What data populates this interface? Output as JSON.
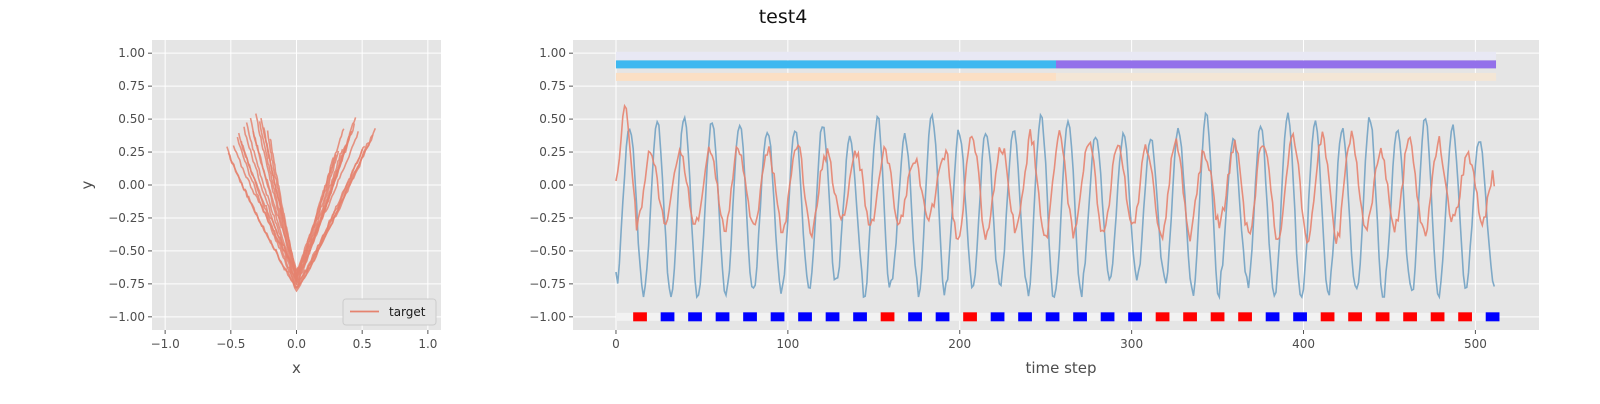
{
  "figure": {
    "title": "test4"
  },
  "chart_data": [
    {
      "type": "line",
      "xlabel": "x",
      "ylabel": "y",
      "xlim": [
        -1.1,
        1.1
      ],
      "ylim": [
        -1.1,
        1.1
      ],
      "xticks": [
        -1.0,
        -0.5,
        0.0,
        0.5,
        1.0
      ],
      "yticks": [
        -1.0,
        -0.75,
        -0.5,
        -0.25,
        0.0,
        0.25,
        0.5,
        0.75,
        1.0
      ],
      "xtick_labels": [
        "−1.0",
        "−0.5",
        "0.0",
        "0.5",
        "1.0"
      ],
      "ytick_labels": [
        "−1.00",
        "−0.75",
        "−0.50",
        "−0.25",
        "0.00",
        "0.25",
        "0.50",
        "0.75",
        "1.00"
      ],
      "grid": true,
      "legend": {
        "placement": "bottom-right",
        "entries": [
          {
            "label": "target",
            "color": "#e5836f"
          }
        ]
      },
      "series_color": "#e5836f",
      "series": [
        {
          "name": "target",
          "vertex": [
            0.0,
            -0.8
          ],
          "left_end": [
            -0.53,
            0.28
          ],
          "right_end": [
            0.6,
            0.42
          ]
        },
        {
          "vertex": [
            0.0,
            -0.79
          ],
          "left_end": [
            -0.52,
            0.25
          ],
          "right_end": [
            0.58,
            0.38
          ]
        },
        {
          "vertex": [
            0.0,
            -0.78
          ],
          "left_end": [
            -0.45,
            0.36
          ],
          "right_end": [
            0.55,
            0.33
          ]
        },
        {
          "vertex": [
            0.0,
            -0.77
          ],
          "left_end": [
            -0.44,
            0.4
          ],
          "right_end": [
            0.52,
            0.3
          ]
        },
        {
          "vertex": [
            0.0,
            -0.76
          ],
          "left_end": [
            -0.4,
            0.44
          ],
          "right_end": [
            0.5,
            0.26
          ]
        },
        {
          "vertex": [
            0.0,
            -0.75
          ],
          "left_end": [
            -0.38,
            0.47
          ],
          "right_end": [
            0.45,
            0.52
          ]
        },
        {
          "vertex": [
            0.0,
            -0.74
          ],
          "left_end": [
            -0.35,
            0.5
          ],
          "right_end": [
            0.44,
            0.46
          ]
        },
        {
          "vertex": [
            0.0,
            -0.73
          ],
          "left_end": [
            -0.31,
            0.55
          ],
          "right_end": [
            0.42,
            0.41
          ]
        },
        {
          "vertex": [
            0.0,
            -0.72
          ],
          "left_end": [
            -0.28,
            0.49
          ],
          "right_end": [
            0.4,
            0.36
          ]
        },
        {
          "vertex": [
            0.0,
            -0.71
          ],
          "left_end": [
            -0.25,
            0.45
          ],
          "right_end": [
            0.38,
            0.32
          ]
        },
        {
          "vertex": [
            0.0,
            -0.7
          ],
          "left_end": [
            -0.22,
            0.4
          ],
          "right_end": [
            0.35,
            0.28
          ]
        },
        {
          "vertex": [
            0.0,
            -0.69
          ],
          "left_end": [
            -0.2,
            0.36
          ],
          "right_end": [
            0.32,
            0.25
          ]
        },
        {
          "vertex": [
            0.0,
            -0.68
          ],
          "left_end": [
            -0.42,
            0.32
          ],
          "right_end": [
            0.3,
            0.22
          ]
        },
        {
          "vertex": [
            0.0,
            -0.67
          ],
          "left_end": [
            -0.48,
            0.3
          ],
          "right_end": [
            0.28,
            0.2
          ]
        },
        {
          "vertex": [
            0.0,
            -0.66
          ],
          "left_end": [
            -0.33,
            0.42
          ],
          "right_end": [
            0.47,
            0.4
          ]
        },
        {
          "vertex": [
            0.0,
            -0.65
          ],
          "left_end": [
            -0.27,
            0.52
          ],
          "right_end": [
            0.36,
            0.44
          ]
        }
      ]
    },
    {
      "type": "line",
      "title": "",
      "xlabel": "time step",
      "ylabel": "",
      "xlim": [
        -25,
        537
      ],
      "ylim": [
        -1.1,
        1.1
      ],
      "xticks": [
        0,
        100,
        200,
        300,
        400,
        500
      ],
      "yticks": [
        -1.0,
        -0.75,
        -0.5,
        -0.25,
        0.0,
        0.25,
        0.5,
        0.75,
        1.0
      ],
      "xtick_labels": [
        "0",
        "100",
        "200",
        "300",
        "400",
        "500"
      ],
      "ytick_labels": [
        "−1.00",
        "−0.75",
        "−0.50",
        "−0.25",
        "0.00",
        "0.25",
        "0.50",
        "0.75",
        "1.00"
      ],
      "grid": true,
      "n_steps": 512,
      "series": [
        {
          "color": "#7ea9c7",
          "base_period": 16,
          "amplitude_range": [
            0.5,
            0.72
          ],
          "center": -0.18,
          "first_value": -0.66,
          "last_value": -0.77
        },
        {
          "color": "#e5836f",
          "start_values": [
            0.03,
            0.1,
            0.2,
            0.35,
            0.52,
            0.6,
            0.58,
            0.45,
            0.3,
            0.15,
            0.0,
            -0.12
          ],
          "amplitude_range": [
            0.22,
            0.4
          ],
          "center": -0.02,
          "last_value": -0.01
        }
      ],
      "phase_bars": [
        {
          "y": 0.98,
          "from": 0,
          "to": 512,
          "color": "#e8e8f4"
        },
        {
          "y": 0.915,
          "from": 0,
          "to": 256,
          "color": "#3eb8f0"
        },
        {
          "y": 0.915,
          "from": 256,
          "to": 512,
          "color": "#9370ea"
        },
        {
          "y": 0.82,
          "from": 0,
          "to": 256,
          "color": "#fbdfc4"
        },
        {
          "y": 0.82,
          "from": 256,
          "to": 512,
          "color": "#f3e6d6"
        }
      ],
      "markers": {
        "y": -1.0,
        "start": 10,
        "step": 16,
        "width": 8,
        "background": {
          "from": 0,
          "to": 512,
          "color": "#f2f2f2"
        },
        "colors": [
          "red",
          "blue",
          "blue",
          "blue",
          "blue",
          "blue",
          "blue",
          "blue",
          "blue",
          "red",
          "blue",
          "blue",
          "red",
          "blue",
          "blue",
          "blue",
          "blue",
          "blue",
          "blue",
          "red",
          "red",
          "red",
          "red",
          "blue",
          "blue",
          "red",
          "red",
          "red",
          "red",
          "red",
          "red",
          "blue"
        ]
      }
    }
  ]
}
